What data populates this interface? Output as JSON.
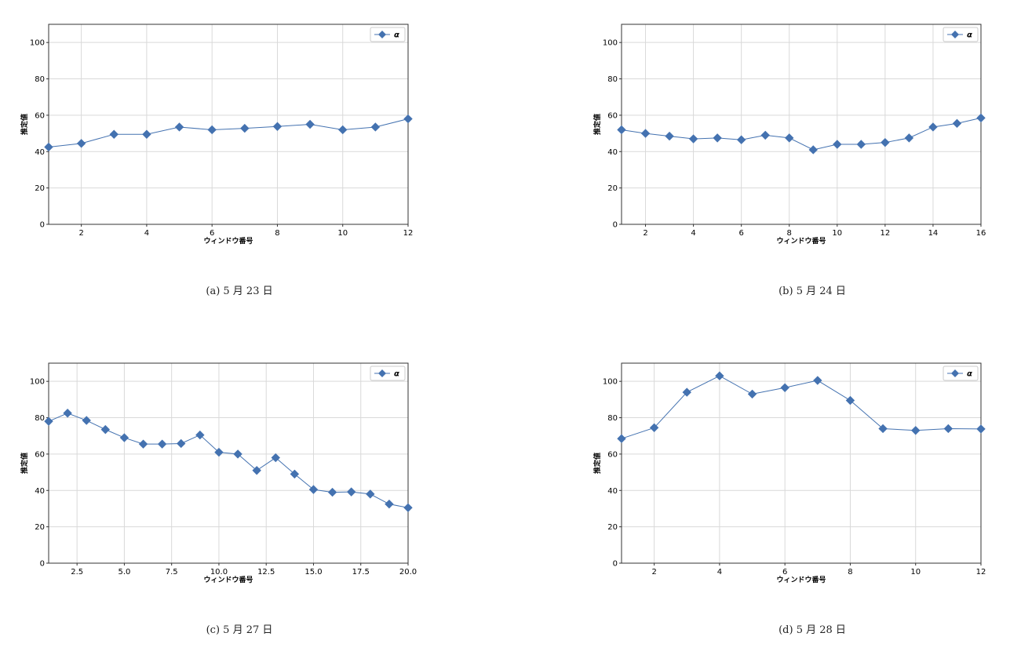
{
  "series_color": "#4472b0",
  "chart_data": [
    {
      "type": "line",
      "caption": "(a) 5 月 23 日",
      "xlabel": "ウィンドウ番号",
      "ylabel": "推定値",
      "legend": "top-right",
      "grid": true,
      "xlim": [
        1,
        12
      ],
      "ylim": [
        0,
        110
      ],
      "xticks": [
        2,
        4,
        6,
        8,
        10,
        12
      ],
      "xtick_labels": [
        "2",
        "4",
        "6",
        "8",
        "10",
        "12"
      ],
      "yticks": [
        0,
        20,
        40,
        60,
        80,
        100
      ],
      "ytick_labels": [
        "0",
        "20",
        "40",
        "60",
        "80",
        "100"
      ],
      "series": [
        {
          "name": "α",
          "x": [
            1,
            2,
            3,
            4,
            5,
            6,
            7,
            8,
            9,
            10,
            11,
            12
          ],
          "y": [
            42.5,
            44.5,
            49.5,
            49.5,
            53.5,
            52,
            52.8,
            53.8,
            55,
            52,
            53.5,
            58
          ]
        }
      ]
    },
    {
      "type": "line",
      "caption": "(b) 5 月 24 日",
      "xlabel": "ウィンドウ番号",
      "ylabel": "推定値",
      "legend": "top-right",
      "grid": true,
      "xlim": [
        1,
        16
      ],
      "ylim": [
        0,
        110
      ],
      "xticks": [
        2,
        4,
        6,
        8,
        10,
        12,
        14,
        16
      ],
      "xtick_labels": [
        "2",
        "4",
        "6",
        "8",
        "10",
        "12",
        "14",
        "16"
      ],
      "yticks": [
        0,
        20,
        40,
        60,
        80,
        100
      ],
      "ytick_labels": [
        "0",
        "20",
        "40",
        "60",
        "80",
        "100"
      ],
      "series": [
        {
          "name": "α",
          "x": [
            1,
            2,
            3,
            4,
            5,
            6,
            7,
            8,
            9,
            10,
            11,
            12,
            13,
            14,
            15,
            16
          ],
          "y": [
            52,
            50,
            48.5,
            47,
            47.5,
            46.5,
            49,
            47.5,
            41,
            44,
            44,
            45,
            47.5,
            53.5,
            55.5,
            58.5
          ]
        }
      ]
    },
    {
      "type": "line",
      "caption": "(c) 5 月 27 日",
      "xlabel": "ウィンドウ番号",
      "ylabel": "推定値",
      "legend": "top-right",
      "grid": true,
      "xlim": [
        1,
        20
      ],
      "ylim": [
        0,
        110
      ],
      "xticks": [
        2.5,
        5,
        7.5,
        10,
        12.5,
        15,
        17.5,
        20
      ],
      "xtick_labels": [
        "2.5",
        "5.0",
        "7.5",
        "10.0",
        "12.5",
        "15.0",
        "17.5",
        "20.0"
      ],
      "yticks": [
        0,
        20,
        40,
        60,
        80,
        100
      ],
      "ytick_labels": [
        "0",
        "20",
        "40",
        "60",
        "80",
        "100"
      ],
      "series": [
        {
          "name": "α",
          "x": [
            1,
            2,
            3,
            4,
            5,
            6,
            7,
            8,
            9,
            10,
            11,
            12,
            13,
            14,
            15,
            16,
            17,
            18,
            19,
            20
          ],
          "y": [
            78,
            82.5,
            78.5,
            73.5,
            69,
            65.5,
            65.5,
            65.8,
            70.5,
            61,
            60,
            51,
            58,
            49,
            40.5,
            39,
            39.2,
            38,
            32.5,
            30.5
          ]
        }
      ]
    },
    {
      "type": "line",
      "caption": "(d) 5 月 28 日",
      "xlabel": "ウィンドウ番号",
      "ylabel": "推定値",
      "legend": "top-right",
      "grid": true,
      "xlim": [
        1,
        12
      ],
      "ylim": [
        0,
        110
      ],
      "xticks": [
        2,
        4,
        6,
        8,
        10,
        12
      ],
      "xtick_labels": [
        "2",
        "4",
        "6",
        "8",
        "10",
        "12"
      ],
      "yticks": [
        0,
        20,
        40,
        60,
        80,
        100
      ],
      "ytick_labels": [
        "0",
        "20",
        "40",
        "60",
        "80",
        "100"
      ],
      "series": [
        {
          "name": "α",
          "x": [
            1,
            2,
            3,
            4,
            5,
            6,
            7,
            8,
            9,
            10,
            11,
            12
          ],
          "y": [
            68.5,
            74.5,
            94,
            103,
            93,
            96.5,
            100.5,
            89.5,
            74,
            73,
            74,
            73.8
          ]
        }
      ]
    }
  ]
}
